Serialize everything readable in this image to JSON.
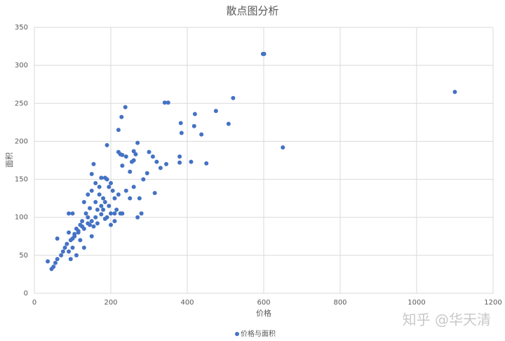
{
  "chart_data": {
    "type": "scatter",
    "title": "散点图分析",
    "x_label": "价格",
    "y_label": "面积",
    "watermark": "知乎 @华天清",
    "series": [
      {
        "name": "价格与面积",
        "color": "#4472c4",
        "x": [
          598,
          601,
          1100,
          650,
          520,
          475,
          508,
          420,
          418,
          437,
          383,
          385,
          341,
          350,
          380,
          380,
          410,
          450,
          345,
          330,
          320,
          300,
          310,
          315,
          285,
          295,
          270,
          260,
          265,
          255,
          260,
          250,
          240,
          230,
          220,
          225,
          230,
          238,
          228,
          220,
          190,
          155,
          150,
          150,
          160,
          170,
          175,
          185,
          190,
          195,
          200,
          205,
          210,
          215,
          225,
          230,
          210,
          200,
          195,
          185,
          180,
          175,
          165,
          160,
          150,
          145,
          140,
          135,
          130,
          125,
          120,
          115,
          110,
          105,
          100,
          95,
          90,
          85,
          80,
          75,
          70,
          60,
          55,
          50,
          45,
          35,
          60,
          100,
          90,
          130,
          140,
          160,
          170,
          180,
          190,
          200,
          210,
          220,
          240,
          250,
          260,
          275,
          280,
          150,
          130,
          120,
          110,
          95,
          90,
          100,
          270,
          140,
          125,
          115,
          105,
          165,
          185,
          175,
          155,
          145
        ],
        "y": [
          315,
          315,
          265,
          192,
          257,
          240,
          223,
          236,
          220,
          209,
          224,
          211,
          251,
          251,
          180,
          172,
          173,
          171,
          170,
          165,
          173,
          186,
          180,
          132,
          150,
          158,
          198,
          187,
          183,
          173,
          175,
          160,
          180,
          182,
          186,
          183,
          168,
          245,
          232,
          215,
          195,
          170,
          157,
          135,
          145,
          130,
          152,
          152,
          150,
          140,
          145,
          135,
          125,
          110,
          105,
          105,
          105,
          105,
          115,
          120,
          125,
          115,
          110,
          100,
          95,
          90,
          100,
          105,
          85,
          95,
          90,
          80,
          85,
          75,
          72,
          70,
          80,
          65,
          60,
          55,
          50,
          45,
          40,
          35,
          32,
          42,
          72,
          105,
          105,
          120,
          130,
          120,
          140,
          110,
          100,
          90,
          95,
          130,
          135,
          125,
          140,
          125,
          105,
          75,
          60,
          70,
          50,
          45,
          55,
          60,
          100,
          92,
          88,
          82,
          78,
          92,
          98,
          104,
          88,
          112
        ]
      }
    ],
    "xlim": [
      0,
      1200
    ],
    "xticks": [
      0,
      200,
      400,
      600,
      800,
      1000,
      1200
    ],
    "ylim": [
      0,
      350
    ],
    "yticks": [
      0,
      50,
      100,
      150,
      200,
      250,
      300,
      350
    ],
    "grid": true,
    "legend": "bottom"
  }
}
